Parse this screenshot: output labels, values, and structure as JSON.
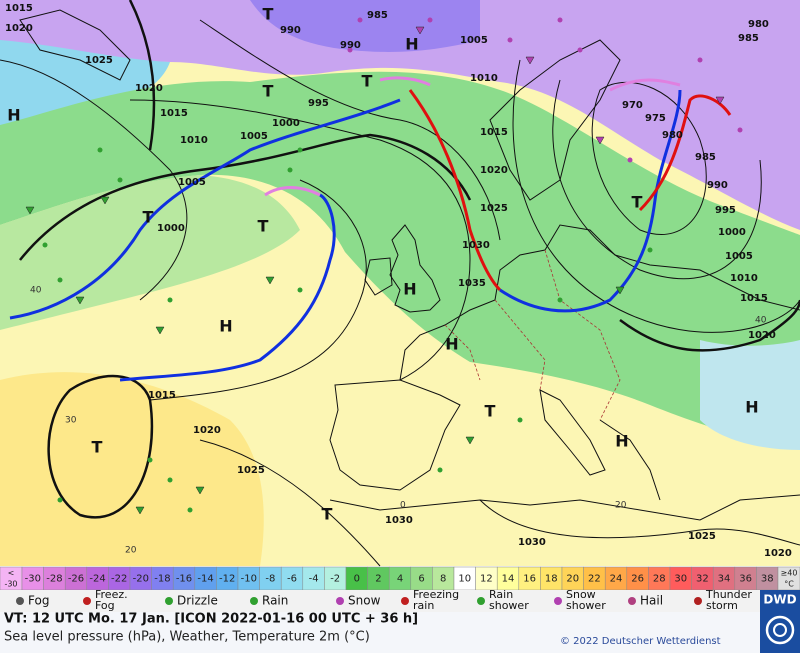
{
  "map": {
    "pressure_labels": [
      1015,
      1020,
      1025,
      1020,
      1015,
      1010,
      1005,
      1000,
      1005,
      1000,
      995,
      990,
      990,
      985,
      1005,
      1010,
      1015,
      1020,
      1025,
      1030,
      1035,
      970,
      975,
      980,
      985,
      990,
      995,
      1000,
      1005,
      1010,
      1015,
      1020,
      985,
      980,
      1015,
      1020,
      1025,
      1030,
      1030,
      1025,
      1020
    ],
    "centers": [
      "H",
      "H",
      "T",
      "T",
      "T",
      "T",
      "T",
      "H",
      "H",
      "T",
      "T",
      "T",
      "H",
      "H",
      "T",
      "H"
    ],
    "temperature_labels": [
      40,
      20,
      30,
      40,
      20,
      0
    ]
  },
  "scale": {
    "low_label": [
      "<",
      "-30"
    ],
    "values": [
      -30,
      -28,
      -26,
      -24,
      -22,
      -20,
      -18,
      -16,
      -14,
      -12,
      -10,
      -8,
      -6,
      -4,
      -2,
      0,
      2,
      4,
      6,
      8,
      10,
      12,
      14,
      16,
      18,
      20,
      22,
      24,
      26,
      28,
      30,
      32,
      34,
      36,
      38
    ],
    "high_label": [
      "≥40",
      "°C"
    ],
    "colors": [
      "#f4b4f4",
      "#e890e8",
      "#dc80dc",
      "#cc70d4",
      "#bc66dc",
      "#aa66e4",
      "#9670ec",
      "#8080f0",
      "#7090ee",
      "#60a0ee",
      "#60b0f0",
      "#70c0f0",
      "#80d0f0",
      "#90dcf0",
      "#a4e8ec",
      "#b4f0e0",
      "#48c048",
      "#60c860",
      "#78d478",
      "#98dc88",
      "#b8e89c",
      "#ffffff",
      "#ffffc8",
      "#ffff9c",
      "#fff080",
      "#ffe468",
      "#ffd458",
      "#ffc048",
      "#ffa848",
      "#ff9048",
      "#ff7858",
      "#ff5c5c",
      "#f06070",
      "#e07080",
      "#d08090",
      "#c090a0",
      "#e0e0e0"
    ]
  },
  "legend": [
    [
      "Fog"
    ],
    [
      "Freez.",
      "Fog"
    ],
    [
      "Drizzle"
    ],
    [
      "Rain"
    ],
    [
      "Snow"
    ],
    [
      "Freezing",
      "rain"
    ],
    [
      "Rain",
      "shower"
    ],
    [
      "Snow",
      "shower"
    ],
    [
      "Hail"
    ],
    [
      "Thunder",
      "storm"
    ]
  ],
  "footer": {
    "valid_time": "VT: 12 UTC Mo.   17 Jan. [ICON 2022-01-16  00 UTC + 36 h]",
    "description": "Sea level pressure (hPa), Weather, Temperature 2m (°C)",
    "copyright": "© 2022 Deutscher Wetterdienst",
    "logo": "DWD"
  }
}
